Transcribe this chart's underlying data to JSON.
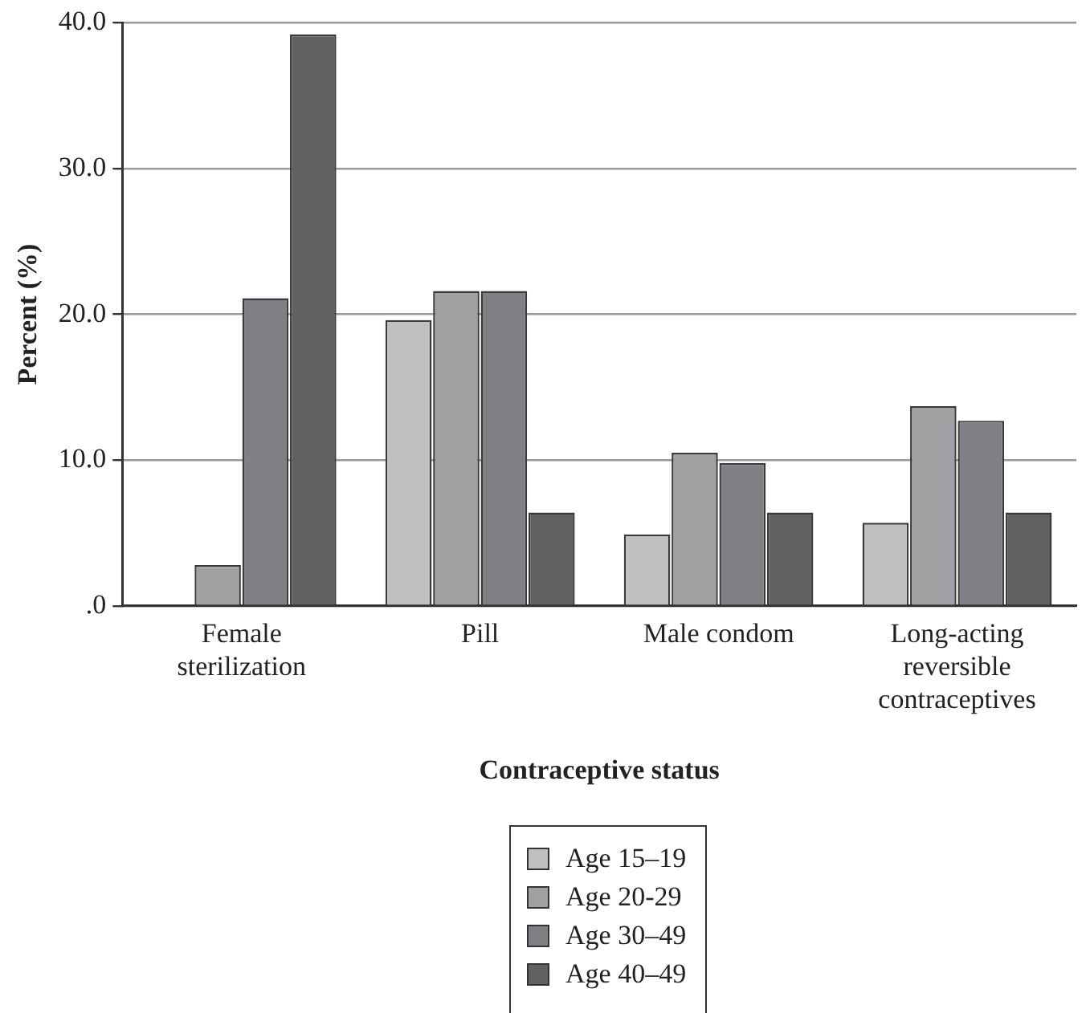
{
  "chart_data": {
    "type": "bar",
    "xlabel": "Contraceptive status",
    "ylabel": "Percent (%)",
    "categories": [
      "Female sterilization",
      "Pill",
      "Male condom",
      "Long-acting reversible contraceptives"
    ],
    "series": [
      {
        "name": "Age 15–19",
        "color": "#bfc0c2",
        "values": [
          0,
          19.6,
          4.9,
          5.7
        ]
      },
      {
        "name": "Age 20-29",
        "color": "#a0a1a3",
        "values": [
          2.8,
          21.6,
          10.5,
          13.7
        ]
      },
      {
        "name": "Age 30–49",
        "color": "#7f8083",
        "values": [
          21.1,
          21.6,
          9.8,
          12.7
        ]
      },
      {
        "name": "Age 40–49",
        "color": "#606163",
        "values": [
          39.2,
          6.4,
          6.4,
          6.4
        ]
      }
    ],
    "ylim": [
      0,
      40
    ],
    "yticks": [
      {
        "value": 0,
        "label": ".0"
      },
      {
        "value": 10,
        "label": "10.0"
      },
      {
        "value": 20,
        "label": "20.0"
      },
      {
        "value": 30,
        "label": "30.0"
      },
      {
        "value": 40,
        "label": "40.0"
      }
    ],
    "grid": "y",
    "legend": "bottom"
  }
}
